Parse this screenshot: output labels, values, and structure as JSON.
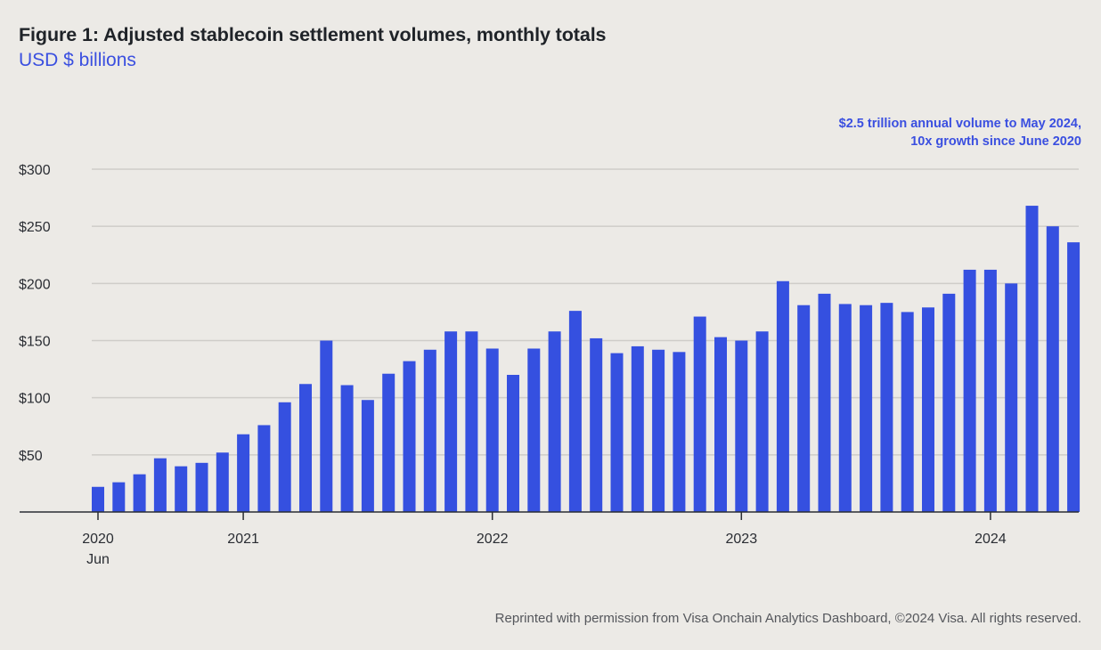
{
  "header": {
    "title": "Figure 1: Adjusted stablecoin settlement volumes, monthly totals",
    "subtitle": "USD $ billions"
  },
  "annotation": {
    "line1": "$2.5 trillion annual volume to May 2024,",
    "line2": "10x growth since June 2020"
  },
  "footer": "Reprinted with permission from Visa Onchain Analytics Dashboard, ©2024 Visa.  All rights reserved.",
  "colors": {
    "bar": "#3550E0",
    "background": "#ECEAE6",
    "accent_text": "#3A4FE0",
    "gridline": "#CFCDC9",
    "axis": "#2A2D33"
  },
  "chart_data": {
    "type": "bar",
    "title": "Figure 1: Adjusted stablecoin settlement volumes, monthly totals",
    "subtitle": "USD $ billions",
    "xlabel": "",
    "ylabel": "USD $ billions",
    "ylim": [
      0,
      300
    ],
    "grid": true,
    "yticks": [
      50,
      100,
      150,
      200,
      250,
      300
    ],
    "ytick_labels": [
      "$50",
      "$100",
      "$150",
      "$200",
      "$250",
      "$300"
    ],
    "xtick_labels": [
      {
        "month_index": 0,
        "label": "2020",
        "sublabel": "Jun"
      },
      {
        "month_index": 7,
        "label": "2021",
        "sublabel": ""
      },
      {
        "month_index": 19,
        "label": "2022",
        "sublabel": ""
      },
      {
        "month_index": 31,
        "label": "2023",
        "sublabel": ""
      },
      {
        "month_index": 43,
        "label": "2024",
        "sublabel": ""
      }
    ],
    "categories": [
      "Jun 2020",
      "Jul 2020",
      "Aug 2020",
      "Sep 2020",
      "Oct 2020",
      "Nov 2020",
      "Dec 2020",
      "Jan 2021",
      "Feb 2021",
      "Mar 2021",
      "Apr 2021",
      "May 2021",
      "Jun 2021",
      "Jul 2021",
      "Aug 2021",
      "Sep 2021",
      "Oct 2021",
      "Nov 2021",
      "Dec 2021",
      "Jan 2022",
      "Feb 2022",
      "Mar 2022",
      "Apr 2022",
      "May 2022",
      "Jun 2022",
      "Jul 2022",
      "Aug 2022",
      "Sep 2022",
      "Oct 2022",
      "Nov 2022",
      "Dec 2022",
      "Jan 2023",
      "Feb 2023",
      "Mar 2023",
      "Apr 2023",
      "May 2023",
      "Jun 2023",
      "Jul 2023",
      "Aug 2023",
      "Sep 2023",
      "Oct 2023",
      "Nov 2023",
      "Dec 2023",
      "Jan 2024",
      "Feb 2024",
      "Mar 2024",
      "Apr 2024",
      "May 2024"
    ],
    "values": [
      22,
      26,
      33,
      47,
      40,
      43,
      52,
      68,
      76,
      96,
      112,
      150,
      111,
      98,
      121,
      132,
      142,
      158,
      158,
      143,
      120,
      143,
      158,
      176,
      152,
      139,
      145,
      142,
      140,
      171,
      153,
      150,
      158,
      202,
      181,
      191,
      182,
      181,
      183,
      175,
      179,
      191,
      212,
      212,
      200,
      268,
      250,
      236
    ],
    "annotation": "$2.5 trillion annual volume to May 2024, 10x growth since June 2020",
    "legend": "none"
  }
}
